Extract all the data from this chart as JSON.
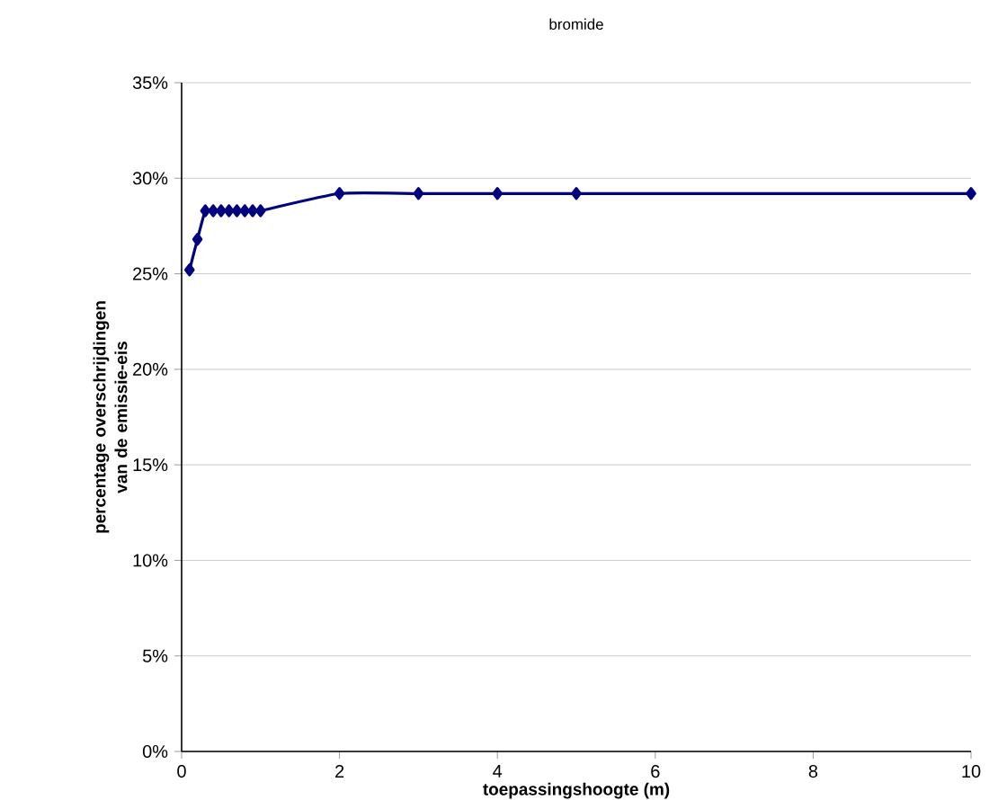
{
  "chart_data": {
    "type": "line",
    "title": "bromide",
    "xlabel": "toepassingshoogte (m)",
    "ylabel": "percentage overschrijdingen van de emissie-eis",
    "x": [
      0.1,
      0.2,
      0.3,
      0.4,
      0.5,
      0.6,
      0.7,
      0.8,
      0.9,
      1,
      2,
      3,
      4,
      5,
      10
    ],
    "series": [
      {
        "color": "#000080",
        "values": [
          25.2,
          26.8,
          28.3,
          28.3,
          28.3,
          28.3,
          28.3,
          28.3,
          28.3,
          28.3,
          29.2,
          29.2,
          29.2,
          29.2,
          29.2
        ]
      }
    ],
    "xlim": [
      0,
      10
    ],
    "xticks": [
      0,
      2,
      4,
      6,
      8,
      10
    ],
    "ylim": [
      0,
      35
    ],
    "yticks": [
      {
        "value": 0,
        "label": "0%"
      },
      {
        "value": 5,
        "label": "5%"
      },
      {
        "value": 10,
        "label": "10%"
      },
      {
        "value": 15,
        "label": "15%"
      },
      {
        "value": 20,
        "label": "20%"
      },
      {
        "value": 25,
        "label": "25%"
      },
      {
        "value": 30,
        "label": "30%"
      },
      {
        "value": 35,
        "label": "35%"
      }
    ],
    "grid": "y",
    "marker": "diamond",
    "line_style": "solid"
  }
}
